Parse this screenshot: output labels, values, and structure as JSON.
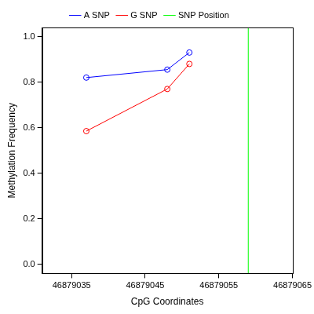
{
  "chart_data": {
    "type": "line",
    "x_label": "CpG Coordinates",
    "y_label": "Methylation Frequency",
    "x": [
      46879037,
      46879048,
      46879051
    ],
    "series": [
      {
        "name": "A SNP",
        "color": "#0000ff",
        "marker": "circle",
        "line_style": "solid",
        "values": [
          0.82,
          0.855,
          0.93
        ]
      },
      {
        "name": "G SNP",
        "color": "#ff0000",
        "marker": "circle",
        "line_style": "solid",
        "values": [
          0.585,
          0.77,
          0.88
        ]
      },
      {
        "name": "SNP Position",
        "color": "#00ff00",
        "type": "vline",
        "line_style": "solid",
        "x": 46879059
      }
    ],
    "xlim": [
      46879031,
      46879065
    ],
    "xticks": [
      46879035,
      46879045,
      46879055,
      46879065
    ],
    "ylim": [
      -0.04,
      1.04
    ],
    "yticks": [
      {
        "value": 0,
        "label": "0.0"
      },
      0.2,
      0.4,
      0.6,
      0.8,
      {
        "value": 1,
        "label": "1.0"
      }
    ],
    "grid": false,
    "legend": "top"
  }
}
